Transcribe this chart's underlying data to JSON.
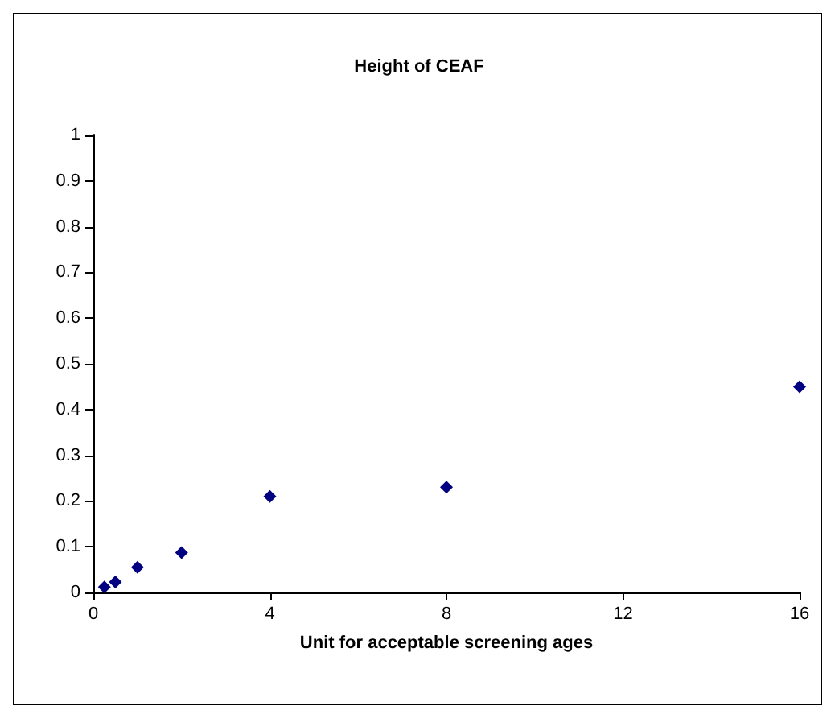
{
  "chart_data": {
    "type": "scatter",
    "title": "Height of CEAF",
    "xlabel": "Unit for acceptable screening ages",
    "x": [
      0.25,
      0.5,
      1,
      2,
      4,
      8,
      16
    ],
    "series": [
      {
        "color": "#000080",
        "values": [
          0.012,
          0.023,
          0.055,
          0.087,
          0.21,
          0.23,
          0.45
        ]
      }
    ],
    "xlim": [
      0,
      16
    ],
    "xticks": [
      0,
      4,
      8,
      12,
      16
    ],
    "ylim": [
      0,
      1
    ],
    "yticks": [
      0,
      0.1,
      0.2,
      0.3,
      0.4,
      0.5,
      0.6,
      0.7,
      0.8,
      0.9,
      1
    ],
    "marker": "diamond",
    "grid": false
  }
}
